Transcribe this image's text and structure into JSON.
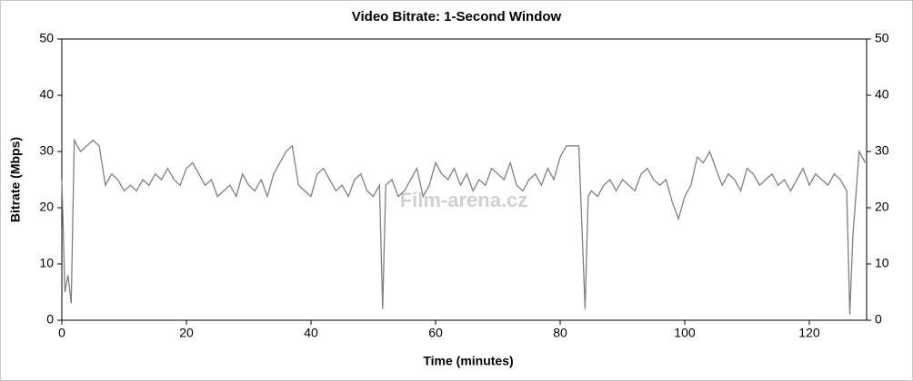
{
  "chart_data": {
    "type": "line",
    "title": "Video Bitrate: 1-Second Window",
    "x_label": "Time (minutes)",
    "y_label": "Bitrate (Mbps)",
    "watermark": "Film-arena.cz",
    "xlim": [
      0,
      129.2
    ],
    "ylim": [
      0,
      50
    ],
    "y2lim": [
      0,
      50
    ],
    "xticks": [
      0,
      20,
      40,
      60,
      80,
      100,
      120
    ],
    "yticks": [
      0,
      10,
      20,
      30,
      40,
      50
    ],
    "y2ticks": [
      0,
      10,
      20,
      30,
      40,
      50
    ],
    "series": [
      {
        "name": "Bitrate",
        "color": "#808080",
        "x": [
          0,
          0.5,
          1,
          1.5,
          2,
          3,
          4,
          5,
          6,
          7,
          8,
          9,
          10,
          11,
          12,
          13,
          14,
          15,
          16,
          17,
          18,
          19,
          20,
          21,
          22,
          23,
          24,
          25,
          26,
          27,
          28,
          29,
          30,
          31,
          32,
          33,
          34,
          35,
          36,
          37,
          38,
          39,
          40,
          41,
          42,
          43,
          44,
          45,
          46,
          47,
          48,
          49,
          50,
          51,
          51.5,
          52,
          53,
          54,
          55,
          56,
          57,
          58,
          59,
          60,
          61,
          62,
          63,
          64,
          65,
          66,
          67,
          68,
          69,
          70,
          71,
          72,
          73,
          74,
          75,
          76,
          77,
          78,
          79,
          80,
          81,
          82,
          83,
          84,
          84.5,
          85,
          86,
          87,
          88,
          89,
          90,
          91,
          92,
          93,
          94,
          95,
          96,
          97,
          98,
          99,
          100,
          101,
          102,
          103,
          104,
          105,
          106,
          107,
          108,
          109,
          110,
          111,
          112,
          113,
          114,
          115,
          116,
          117,
          118,
          119,
          120,
          121,
          122,
          123,
          124,
          125,
          126,
          126.5,
          127,
          128,
          129
        ],
        "values": [
          25,
          5,
          8,
          3,
          32,
          30,
          31,
          32,
          31,
          24,
          26,
          25,
          23,
          24,
          23,
          25,
          24,
          26,
          25,
          27,
          25,
          24,
          27,
          28,
          26,
          24,
          25,
          22,
          23,
          24,
          22,
          26,
          24,
          23,
          25,
          22,
          26,
          28,
          30,
          31,
          24,
          23,
          22,
          26,
          27,
          25,
          23,
          24,
          22,
          25,
          26,
          23,
          22,
          24,
          2,
          24,
          25,
          22,
          23,
          25,
          27,
          22,
          24,
          28,
          26,
          25,
          27,
          24,
          26,
          23,
          25,
          24,
          27,
          26,
          25,
          28,
          24,
          23,
          25,
          26,
          24,
          27,
          25,
          29,
          31,
          31,
          31,
          2,
          22,
          23,
          22,
          24,
          25,
          23,
          25,
          24,
          23,
          26,
          27,
          25,
          24,
          25,
          21,
          18,
          22,
          24,
          29,
          28,
          30,
          27,
          24,
          26,
          25,
          23,
          27,
          26,
          24,
          25,
          26,
          24,
          25,
          23,
          25,
          27,
          24,
          26,
          25,
          24,
          26,
          25,
          23,
          1,
          15,
          30,
          28
        ]
      }
    ]
  }
}
